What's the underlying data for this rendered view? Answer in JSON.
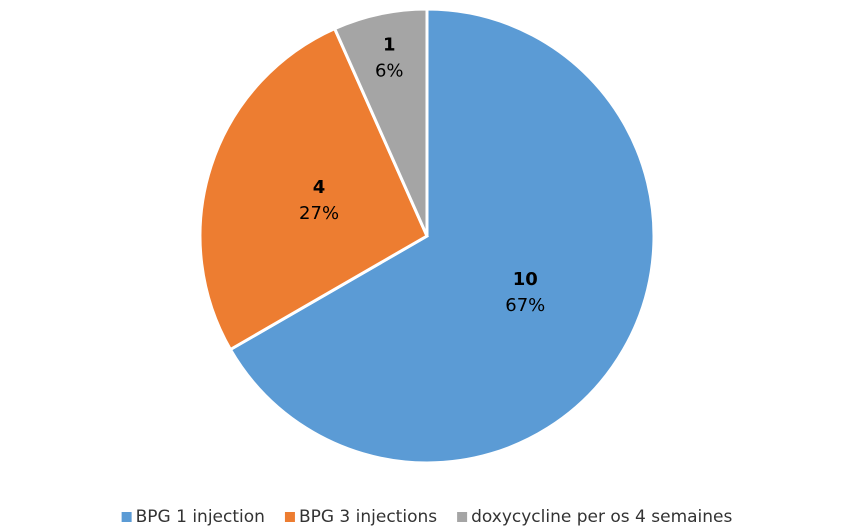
{
  "chart_data": {
    "type": "pie",
    "categories": [
      "BPG 1 injection",
      "BPG 3 injections",
      "doxycycline per os 4 semaines"
    ],
    "values": [
      10,
      4,
      1
    ],
    "percent_labels": [
      "67%",
      "27%",
      "6%"
    ],
    "colors": [
      "#5b9bd5",
      "#ed7d31",
      "#a5a5a5"
    ],
    "legend": "bottom"
  }
}
